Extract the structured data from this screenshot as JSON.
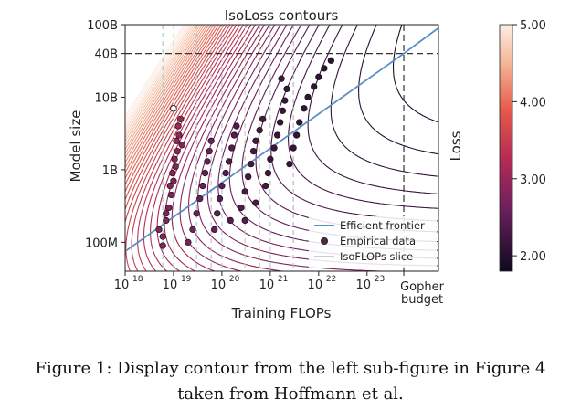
{
  "chart_data": {
    "type": "contour",
    "title": "IsoLoss contours",
    "xlabel": "Training FLOPs",
    "ylabel": "Model size",
    "x_scale": "log",
    "y_scale": "log",
    "xlim": [
      1e+18,
      3e+24
    ],
    "ylim": [
      40000000.0,
      100000000000.0
    ],
    "x_ticks": [
      {
        "value": 1e+18,
        "label": "10",
        "exp": "18"
      },
      {
        "value": 1e+19,
        "label": "10",
        "exp": "19"
      },
      {
        "value": 1e+20,
        "label": "10",
        "exp": "20"
      },
      {
        "value": 1e+21,
        "label": "10",
        "exp": "21"
      },
      {
        "value": 1e+22,
        "label": "10",
        "exp": "22"
      },
      {
        "value": 1e+23,
        "label": "10",
        "exp": "23"
      }
    ],
    "y_ticks": [
      {
        "value": 100000000.0,
        "label": "100M"
      },
      {
        "value": 1000000000.0,
        "label": "1B"
      },
      {
        "value": 10000000000.0,
        "label": "10B"
      },
      {
        "value": 40000000000.0,
        "label": "40B"
      },
      {
        "value": 100000000000.0,
        "label": "100B"
      }
    ],
    "gopher_budget": {
      "value": 5.76e+23,
      "label_line1": "Gopher",
      "label_line2": "budget"
    },
    "reference_lines": {
      "y": 40000000000.0,
      "x": 5.76e+23
    },
    "isoflops_slices": [
      6e+18,
      1e+19,
      3e+19,
      6e+19,
      1e+20,
      3e+20,
      6e+20,
      1e+21,
      3e+21
    ],
    "efficient_frontier": {
      "name": "Efficient frontier",
      "x": [
        1e+18,
        5.76e+23,
        3e+24
      ],
      "y": [
        75000000.0,
        40000000000.0,
        90000000000.0
      ],
      "color": "#5b8fc4"
    },
    "empirical_data": {
      "name": "Empirical data",
      "points": [
        [
          6e+18,
          120000000.0
        ],
        [
          7e+18,
          200000000.0
        ],
        [
          8e+18,
          300000000.0
        ],
        [
          9e+18,
          450000000.0
        ],
        [
          1e+19,
          700000000.0
        ],
        [
          1.1e+19,
          1100000000.0
        ],
        [
          1.2e+19,
          1800000000.0
        ],
        [
          1.3e+19,
          3000000000.0
        ],
        [
          1.4e+19,
          5000000000.0
        ],
        [
          1.5e+19,
          2200000000.0
        ],
        [
          6e+18,
          90000000.0
        ],
        [
          5e+18,
          150000000.0
        ],
        [
          7e+18,
          250000000.0
        ],
        [
          8.5e+18,
          600000000.0
        ],
        [
          9.5e+18,
          900000000.0
        ],
        [
          1.05e+19,
          1400000000.0
        ],
        [
          1.15e+19,
          2500000000.0
        ],
        [
          1.25e+19,
          4000000000.0
        ],
        [
          2e+19,
          100000000.0
        ],
        [
          2.5e+19,
          150000000.0
        ],
        [
          3e+19,
          250000000.0
        ],
        [
          3.5e+19,
          400000000.0
        ],
        [
          4e+19,
          600000000.0
        ],
        [
          4.5e+19,
          900000000.0
        ],
        [
          5e+19,
          1300000000.0
        ],
        [
          5.5e+19,
          1800000000.0
        ],
        [
          6e+19,
          2500000000.0
        ],
        [
          7e+19,
          150000000.0
        ],
        [
          8e+19,
          250000000.0
        ],
        [
          9e+19,
          400000000.0
        ],
        [
          1e+20,
          600000000.0
        ],
        [
          1.2e+20,
          900000000.0
        ],
        [
          1.4e+20,
          1300000000.0
        ],
        [
          1.6e+20,
          2000000000.0
        ],
        [
          1.8e+20,
          3000000000.0
        ],
        [
          2e+20,
          4000000000.0
        ],
        [
          2.5e+20,
          300000000.0
        ],
        [
          3e+20,
          500000000.0
        ],
        [
          3.5e+20,
          800000000.0
        ],
        [
          4e+20,
          1200000000.0
        ],
        [
          4.5e+20,
          1800000000.0
        ],
        [
          5e+20,
          2500000000.0
        ],
        [
          6e+20,
          3500000000.0
        ],
        [
          7e+20,
          5000000000.0
        ],
        [
          8e+20,
          600000000.0
        ],
        [
          9e+20,
          900000000.0
        ],
        [
          1e+21,
          1400000000.0
        ],
        [
          1.2e+21,
          2000000000.0
        ],
        [
          1.4e+21,
          3000000000.0
        ],
        [
          1.6e+21,
          4500000000.0
        ],
        [
          1.8e+21,
          6500000000.0
        ],
        [
          2e+21,
          9000000000.0
        ],
        [
          2.5e+21,
          1200000000.0
        ],
        [
          3e+21,
          2000000000.0
        ],
        [
          3.5e+21,
          3000000000.0
        ],
        [
          4e+21,
          4500000000.0
        ],
        [
          5e+21,
          7000000000.0
        ],
        [
          6e+21,
          10000000000.0
        ],
        [
          8e+21,
          14000000000.0
        ],
        [
          1e+22,
          19000000000.0
        ],
        [
          1.3e+22,
          25000000000.0
        ],
        [
          1.8e+22,
          32000000000.0
        ],
        [
          3e+20,
          200000000.0
        ],
        [
          5e+20,
          350000000.0
        ],
        [
          1.5e+20,
          200000000.0
        ],
        [
          2.2e+21,
          13000000000.0
        ],
        [
          1.7e+21,
          18000000000.0
        ]
      ],
      "highlight": {
        "x": 1e+19,
        "y": 7000000000.0
      }
    },
    "legend": {
      "placement": "bottom-right",
      "entries": [
        "Efficient frontier",
        "Empirical data",
        "IsoFLOPs slice"
      ]
    },
    "colorbar": {
      "label": "Loss",
      "min": 1.8,
      "max": 5.0,
      "ticks": [
        {
          "value": 5.0,
          "label": "5.00"
        },
        {
          "value": 4.0,
          "label": "4.00"
        },
        {
          "value": 3.0,
          "label": "3.00"
        },
        {
          "value": 2.0,
          "label": "2.00"
        }
      ]
    }
  },
  "caption": {
    "line1": "Figure 1:  Display contour from the left sub-figure in Figure 4",
    "line2": "taken from Hoffmann et al."
  }
}
